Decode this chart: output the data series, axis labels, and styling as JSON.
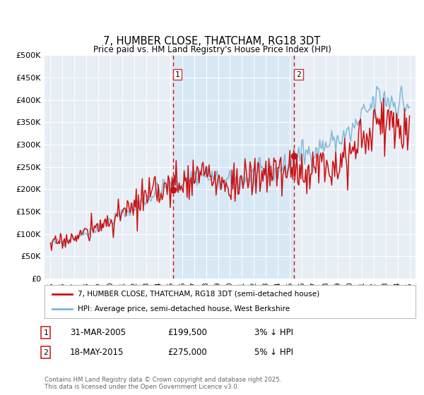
{
  "title": "7, HUMBER CLOSE, THATCHAM, RG18 3DT",
  "subtitle": "Price paid vs. HM Land Registry's House Price Index (HPI)",
  "legend_line1": "7, HUMBER CLOSE, THATCHAM, RG18 3DT (semi-detached house)",
  "legend_line2": "HPI: Average price, semi-detached house, West Berkshire",
  "sale1_date": "31-MAR-2005",
  "sale1_price": "£199,500",
  "sale1_note": "3% ↓ HPI",
  "sale1_year": 2005.24,
  "sale1_value": 199500,
  "sale2_date": "18-MAY-2015",
  "sale2_price": "£275,000",
  "sale2_note": "5% ↓ HPI",
  "sale2_year": 2015.37,
  "sale2_value": 275000,
  "hpi_color": "#7ab8d8",
  "price_color": "#cc1111",
  "vline_color": "#cc1111",
  "highlight_color": "#d8e8f5",
  "plot_bg_color": "#e8eef5",
  "grid_color": "#ffffff",
  "footer_text": "Contains HM Land Registry data © Crown copyright and database right 2025.\nThis data is licensed under the Open Government Licence v3.0.",
  "ylim": [
    0,
    500000
  ],
  "yticks": [
    0,
    50000,
    100000,
    150000,
    200000,
    250000,
    300000,
    350000,
    400000,
    450000,
    500000
  ],
  "ytick_labels": [
    "£0",
    "£50K",
    "£100K",
    "£150K",
    "£200K",
    "£250K",
    "£300K",
    "£350K",
    "£400K",
    "£450K",
    "£500K"
  ],
  "xlim_start": 1994.5,
  "xlim_end": 2025.5,
  "xticks": [
    1995,
    1996,
    1997,
    1998,
    1999,
    2000,
    2001,
    2002,
    2003,
    2004,
    2005,
    2006,
    2007,
    2008,
    2009,
    2010,
    2011,
    2012,
    2013,
    2014,
    2015,
    2016,
    2017,
    2018,
    2019,
    2020,
    2021,
    2022,
    2023,
    2024,
    2025
  ]
}
